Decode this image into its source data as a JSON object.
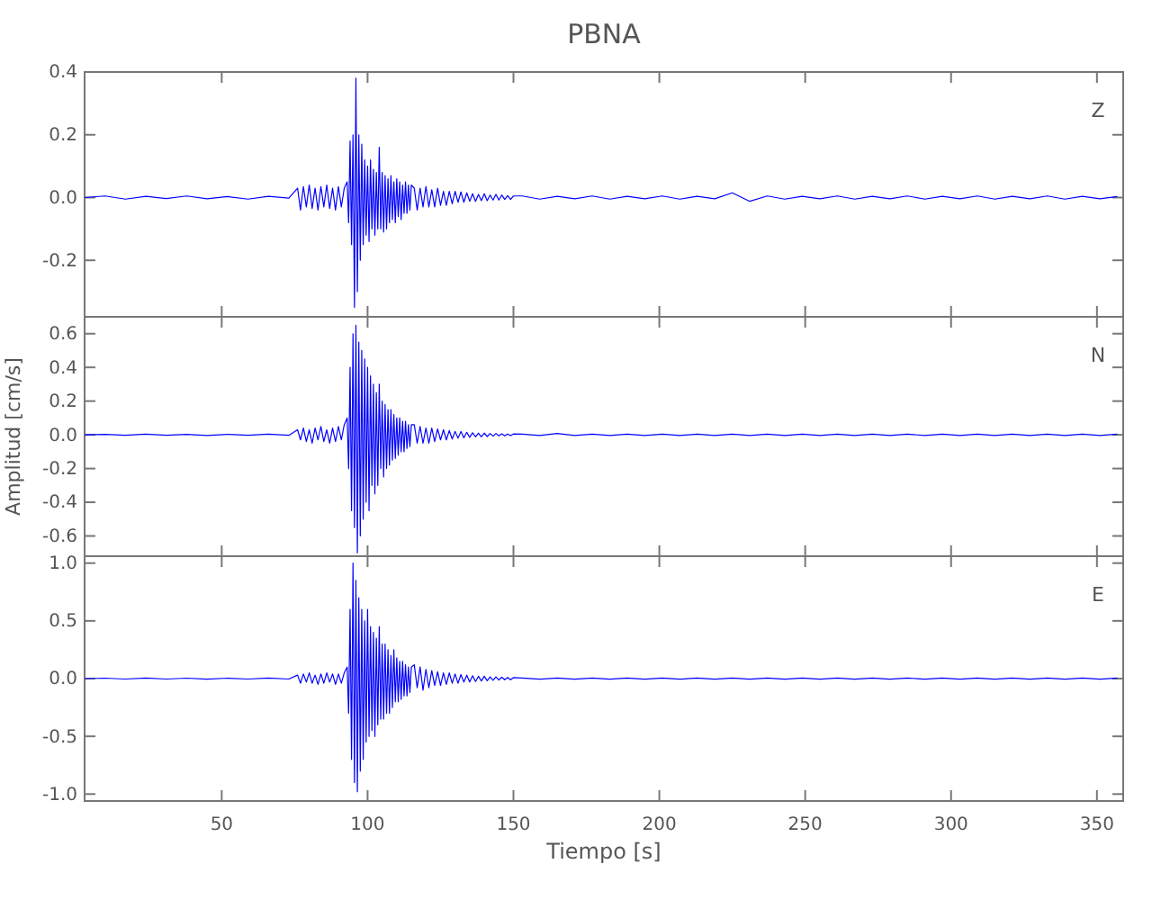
{
  "chart_data": [
    {
      "type": "line",
      "title": "PBNA",
      "annotations": [
        "Z"
      ],
      "tick_labels": "y",
      "xlim": [
        3,
        359
      ],
      "xticks": [
        50,
        100,
        150,
        200,
        250,
        300,
        350
      ],
      "ylim": [
        -0.38,
        0.4
      ],
      "yticks": [
        -0.2,
        {
          "value": 0,
          "label": "0.0"
        },
        0.2,
        0.4
      ],
      "x": [
        3,
        10,
        17,
        24,
        31,
        38,
        45,
        52,
        59,
        66,
        73,
        76,
        77,
        78,
        79,
        80,
        81,
        82,
        83,
        84,
        85,
        86,
        87,
        88,
        89,
        90,
        91,
        92,
        93,
        93.5,
        94,
        94.5,
        95,
        95.5,
        96,
        96.5,
        97,
        97.5,
        98,
        98.5,
        99,
        99.5,
        100,
        100.5,
        101,
        101.5,
        102,
        102.5,
        103,
        103.5,
        104,
        104.5,
        105,
        105.5,
        106,
        106.5,
        107,
        107.5,
        108,
        108.5,
        109,
        109.5,
        110,
        110.5,
        111,
        111.5,
        112,
        112.5,
        113,
        113.5,
        114,
        114.5,
        115,
        116,
        117,
        118,
        119,
        120,
        121,
        122,
        123,
        124,
        125,
        126,
        127,
        128,
        129,
        130,
        131,
        132,
        133,
        134,
        135,
        136,
        137,
        138,
        139,
        140,
        141,
        142,
        143,
        144,
        145,
        146,
        147,
        148,
        149,
        150,
        153,
        159,
        165,
        171,
        177,
        183,
        189,
        195,
        201,
        207,
        213,
        219,
        225,
        231,
        237,
        243,
        249,
        255,
        261,
        267,
        273,
        279,
        285,
        291,
        297,
        303,
        309,
        315,
        321,
        327,
        333,
        339,
        345,
        351,
        357
      ],
      "series": [
        {
          "color": "#0000ff",
          "values": [
            0,
            0.005,
            -0.005,
            0.004,
            -0.003,
            0.005,
            -0.004,
            0.003,
            -0.005,
            0.004,
            -0.002,
            0.03,
            -0.04,
            0.035,
            -0.03,
            0.04,
            -0.035,
            0.03,
            -0.04,
            0.035,
            -0.03,
            0.04,
            -0.035,
            0.03,
            -0.04,
            0.035,
            -0.03,
            0.03,
            0.05,
            -0.08,
            0.18,
            -0.15,
            0.2,
            -0.35,
            0.38,
            -0.3,
            0.2,
            -0.2,
            0.17,
            -0.15,
            0.12,
            -0.12,
            0.1,
            -0.14,
            0.12,
            -0.1,
            0.09,
            -0.12,
            0.08,
            -0.1,
            0.16,
            -0.1,
            0.08,
            -0.11,
            0.07,
            -0.1,
            0.06,
            -0.08,
            0.07,
            -0.07,
            0.05,
            -0.08,
            0.06,
            -0.06,
            0.05,
            -0.07,
            0.04,
            -0.05,
            0.05,
            -0.05,
            0.04,
            -0.04,
            0.04,
            0.03,
            -0.04,
            0.03,
            -0.03,
            0.035,
            -0.03,
            0.025,
            -0.03,
            0.03,
            -0.025,
            0.02,
            -0.025,
            0.02,
            -0.02,
            0.02,
            -0.015,
            0.018,
            -0.015,
            0.015,
            -0.012,
            0.012,
            -0.012,
            0.01,
            -0.01,
            0.012,
            -0.01,
            0.008,
            -0.008,
            0.01,
            -0.008,
            0.008,
            -0.006,
            0.006,
            -0.006,
            0.005,
            0.005,
            -0.005,
            0.004,
            -0.004,
            0.005,
            -0.005,
            0.004,
            -0.004,
            0.005,
            -0.005,
            0.004,
            -0.004,
            0.015,
            -0.012,
            0.005,
            -0.005,
            0.004,
            -0.004,
            0.005,
            -0.005,
            0.004,
            -0.004,
            0.005,
            -0.005,
            0.004,
            -0.004,
            0.005,
            -0.005,
            0.004,
            -0.004,
            0.005,
            -0.005,
            0.004,
            -0.004,
            0.003
          ]
        }
      ]
    },
    {
      "type": "line",
      "ylabel": "Amplitud [cm/s]",
      "annotations": [
        "N"
      ],
      "tick_labels": "y",
      "xlim": [
        3,
        359
      ],
      "xticks": [
        50,
        100,
        150,
        200,
        250,
        300,
        350
      ],
      "ylim": [
        -0.72,
        0.7
      ],
      "yticks": [
        -0.6,
        -0.4,
        -0.2,
        {
          "value": 0,
          "label": "0.0"
        },
        0.2,
        0.4,
        0.6
      ],
      "x": [
        3,
        10,
        17,
        24,
        31,
        38,
        45,
        52,
        59,
        66,
        73,
        76,
        77,
        78,
        79,
        80,
        81,
        82,
        83,
        84,
        85,
        86,
        87,
        88,
        89,
        90,
        91,
        92,
        93,
        93.5,
        94,
        94.5,
        95,
        95.5,
        96,
        96.5,
        97,
        97.5,
        98,
        98.5,
        99,
        99.5,
        100,
        100.5,
        101,
        101.5,
        102,
        102.5,
        103,
        103.5,
        104,
        104.5,
        105,
        105.5,
        106,
        106.5,
        107,
        107.5,
        108,
        108.5,
        109,
        109.5,
        110,
        110.5,
        111,
        111.5,
        112,
        112.5,
        113,
        113.5,
        114,
        114.5,
        115,
        116,
        117,
        118,
        119,
        120,
        121,
        122,
        123,
        124,
        125,
        126,
        127,
        128,
        129,
        130,
        131,
        132,
        133,
        134,
        135,
        136,
        137,
        138,
        139,
        140,
        141,
        142,
        143,
        144,
        145,
        146,
        147,
        148,
        149,
        150,
        153,
        159,
        165,
        171,
        177,
        183,
        189,
        195,
        201,
        207,
        213,
        219,
        225,
        231,
        237,
        243,
        249,
        255,
        261,
        267,
        273,
        279,
        285,
        291,
        297,
        303,
        309,
        315,
        321,
        327,
        333,
        339,
        345,
        351,
        357
      ],
      "series": [
        {
          "color": "#0000ff",
          "values": [
            0,
            0.003,
            -0.003,
            0.004,
            -0.003,
            0.003,
            -0.004,
            0.003,
            -0.003,
            0.004,
            -0.003,
            0.03,
            -0.03,
            0.04,
            -0.04,
            0.03,
            -0.05,
            0.04,
            -0.03,
            0.05,
            -0.04,
            0.03,
            -0.05,
            0.04,
            -0.04,
            0.05,
            -0.03,
            0.06,
            0.1,
            -0.2,
            0.4,
            -0.45,
            0.6,
            -0.55,
            0.65,
            -0.7,
            0.55,
            -0.6,
            0.5,
            -0.5,
            0.45,
            -0.4,
            0.4,
            -0.45,
            0.35,
            -0.3,
            0.3,
            -0.35,
            0.25,
            -0.3,
            0.3,
            -0.2,
            0.2,
            -0.25,
            0.18,
            -0.2,
            0.15,
            -0.18,
            0.15,
            -0.15,
            0.12,
            -0.14,
            0.1,
            -0.12,
            0.1,
            -0.1,
            0.08,
            -0.1,
            0.08,
            -0.08,
            0.06,
            -0.07,
            0.06,
            0.06,
            -0.05,
            0.05,
            -0.05,
            0.04,
            -0.05,
            0.04,
            -0.04,
            0.035,
            -0.03,
            0.03,
            -0.03,
            0.025,
            -0.025,
            0.02,
            -0.02,
            0.02,
            -0.018,
            0.015,
            -0.015,
            0.012,
            -0.012,
            0.01,
            -0.012,
            0.01,
            -0.01,
            0.008,
            -0.008,
            0.008,
            -0.006,
            0.006,
            -0.006,
            0.005,
            -0.005,
            0.005,
            0.004,
            -0.004,
            0.008,
            -0.004,
            0.004,
            -0.004,
            0.004,
            -0.004,
            0.004,
            -0.004,
            0.004,
            -0.004,
            0.004,
            -0.004,
            0.004,
            -0.004,
            0.004,
            -0.004,
            0.004,
            -0.004,
            0.004,
            -0.004,
            0.004,
            -0.004,
            0.004,
            -0.004,
            0.004,
            -0.004,
            0.004,
            -0.004,
            0.004,
            -0.004,
            0.004,
            -0.004,
            0.004
          ]
        }
      ]
    },
    {
      "type": "line",
      "xlabel": "Tiempo [s]",
      "annotations": [
        "E"
      ],
      "xlim": [
        3,
        359
      ],
      "xticks": [
        50,
        100,
        150,
        200,
        250,
        300,
        350
      ],
      "ylim": [
        -1.06,
        1.06
      ],
      "yticks": [
        {
          "value": -1,
          "label": "-1.0"
        },
        -0.5,
        {
          "value": 0,
          "label": "0.0"
        },
        0.5,
        {
          "value": 1,
          "label": "1.0"
        }
      ],
      "x": [
        3,
        10,
        17,
        24,
        31,
        38,
        45,
        52,
        59,
        66,
        73,
        76,
        77,
        78,
        79,
        80,
        81,
        82,
        83,
        84,
        85,
        86,
        87,
        88,
        89,
        90,
        91,
        92,
        93,
        93.5,
        94,
        94.5,
        95,
        95.5,
        96,
        96.5,
        97,
        97.5,
        98,
        98.5,
        99,
        99.5,
        100,
        100.5,
        101,
        101.5,
        102,
        102.5,
        103,
        103.5,
        104,
        104.5,
        105,
        105.5,
        106,
        106.5,
        107,
        107.5,
        108,
        108.5,
        109,
        109.5,
        110,
        110.5,
        111,
        111.5,
        112,
        112.5,
        113,
        113.5,
        114,
        114.5,
        115,
        116,
        117,
        118,
        119,
        120,
        121,
        122,
        123,
        124,
        125,
        126,
        127,
        128,
        129,
        130,
        131,
        132,
        133,
        134,
        135,
        136,
        137,
        138,
        139,
        140,
        141,
        142,
        143,
        144,
        145,
        146,
        147,
        148,
        149,
        150,
        153,
        159,
        165,
        171,
        177,
        183,
        189,
        195,
        201,
        207,
        213,
        219,
        225,
        231,
        237,
        243,
        249,
        255,
        261,
        267,
        273,
        279,
        285,
        291,
        297,
        303,
        309,
        315,
        321,
        327,
        333,
        339,
        345,
        351,
        357
      ],
      "series": [
        {
          "color": "#0000ff",
          "values": [
            0,
            0.004,
            -0.004,
            0.005,
            -0.004,
            0.004,
            -0.005,
            0.004,
            -0.004,
            0.005,
            -0.004,
            0.03,
            -0.04,
            0.04,
            -0.03,
            0.05,
            -0.04,
            0.03,
            -0.05,
            0.04,
            -0.04,
            0.05,
            -0.03,
            0.04,
            -0.05,
            0.04,
            -0.04,
            0.05,
            0.1,
            -0.3,
            0.6,
            -0.7,
            1.0,
            -0.9,
            0.85,
            -0.98,
            0.7,
            -0.8,
            0.6,
            -0.7,
            0.5,
            -0.55,
            0.6,
            -0.5,
            0.45,
            -0.45,
            0.4,
            -0.5,
            0.35,
            -0.4,
            0.45,
            -0.35,
            0.3,
            -0.35,
            0.3,
            -0.3,
            0.25,
            -0.3,
            0.2,
            -0.25,
            0.25,
            -0.2,
            0.18,
            -0.2,
            0.15,
            -0.18,
            0.15,
            -0.15,
            0.12,
            -0.15,
            0.1,
            -0.12,
            0.1,
            0.12,
            -0.08,
            0.1,
            -0.1,
            0.08,
            -0.08,
            0.07,
            -0.06,
            0.06,
            -0.06,
            0.05,
            -0.05,
            0.05,
            -0.04,
            0.04,
            -0.04,
            0.035,
            -0.03,
            0.03,
            -0.03,
            0.025,
            -0.025,
            0.02,
            -0.02,
            0.02,
            -0.018,
            0.015,
            -0.015,
            0.015,
            -0.012,
            0.012,
            -0.01,
            0.01,
            -0.01,
            0.008,
            0.005,
            -0.005,
            0.005,
            -0.005,
            0.005,
            -0.005,
            0.005,
            -0.005,
            0.005,
            -0.005,
            0.005,
            -0.005,
            0.005,
            -0.005,
            0.005,
            -0.005,
            0.005,
            -0.005,
            0.005,
            -0.005,
            0.005,
            -0.005,
            0.005,
            -0.005,
            0.005,
            -0.005,
            0.005,
            -0.005,
            0.005,
            -0.005,
            0.005,
            -0.005,
            0.005,
            -0.005,
            0.005
          ]
        }
      ]
    }
  ]
}
